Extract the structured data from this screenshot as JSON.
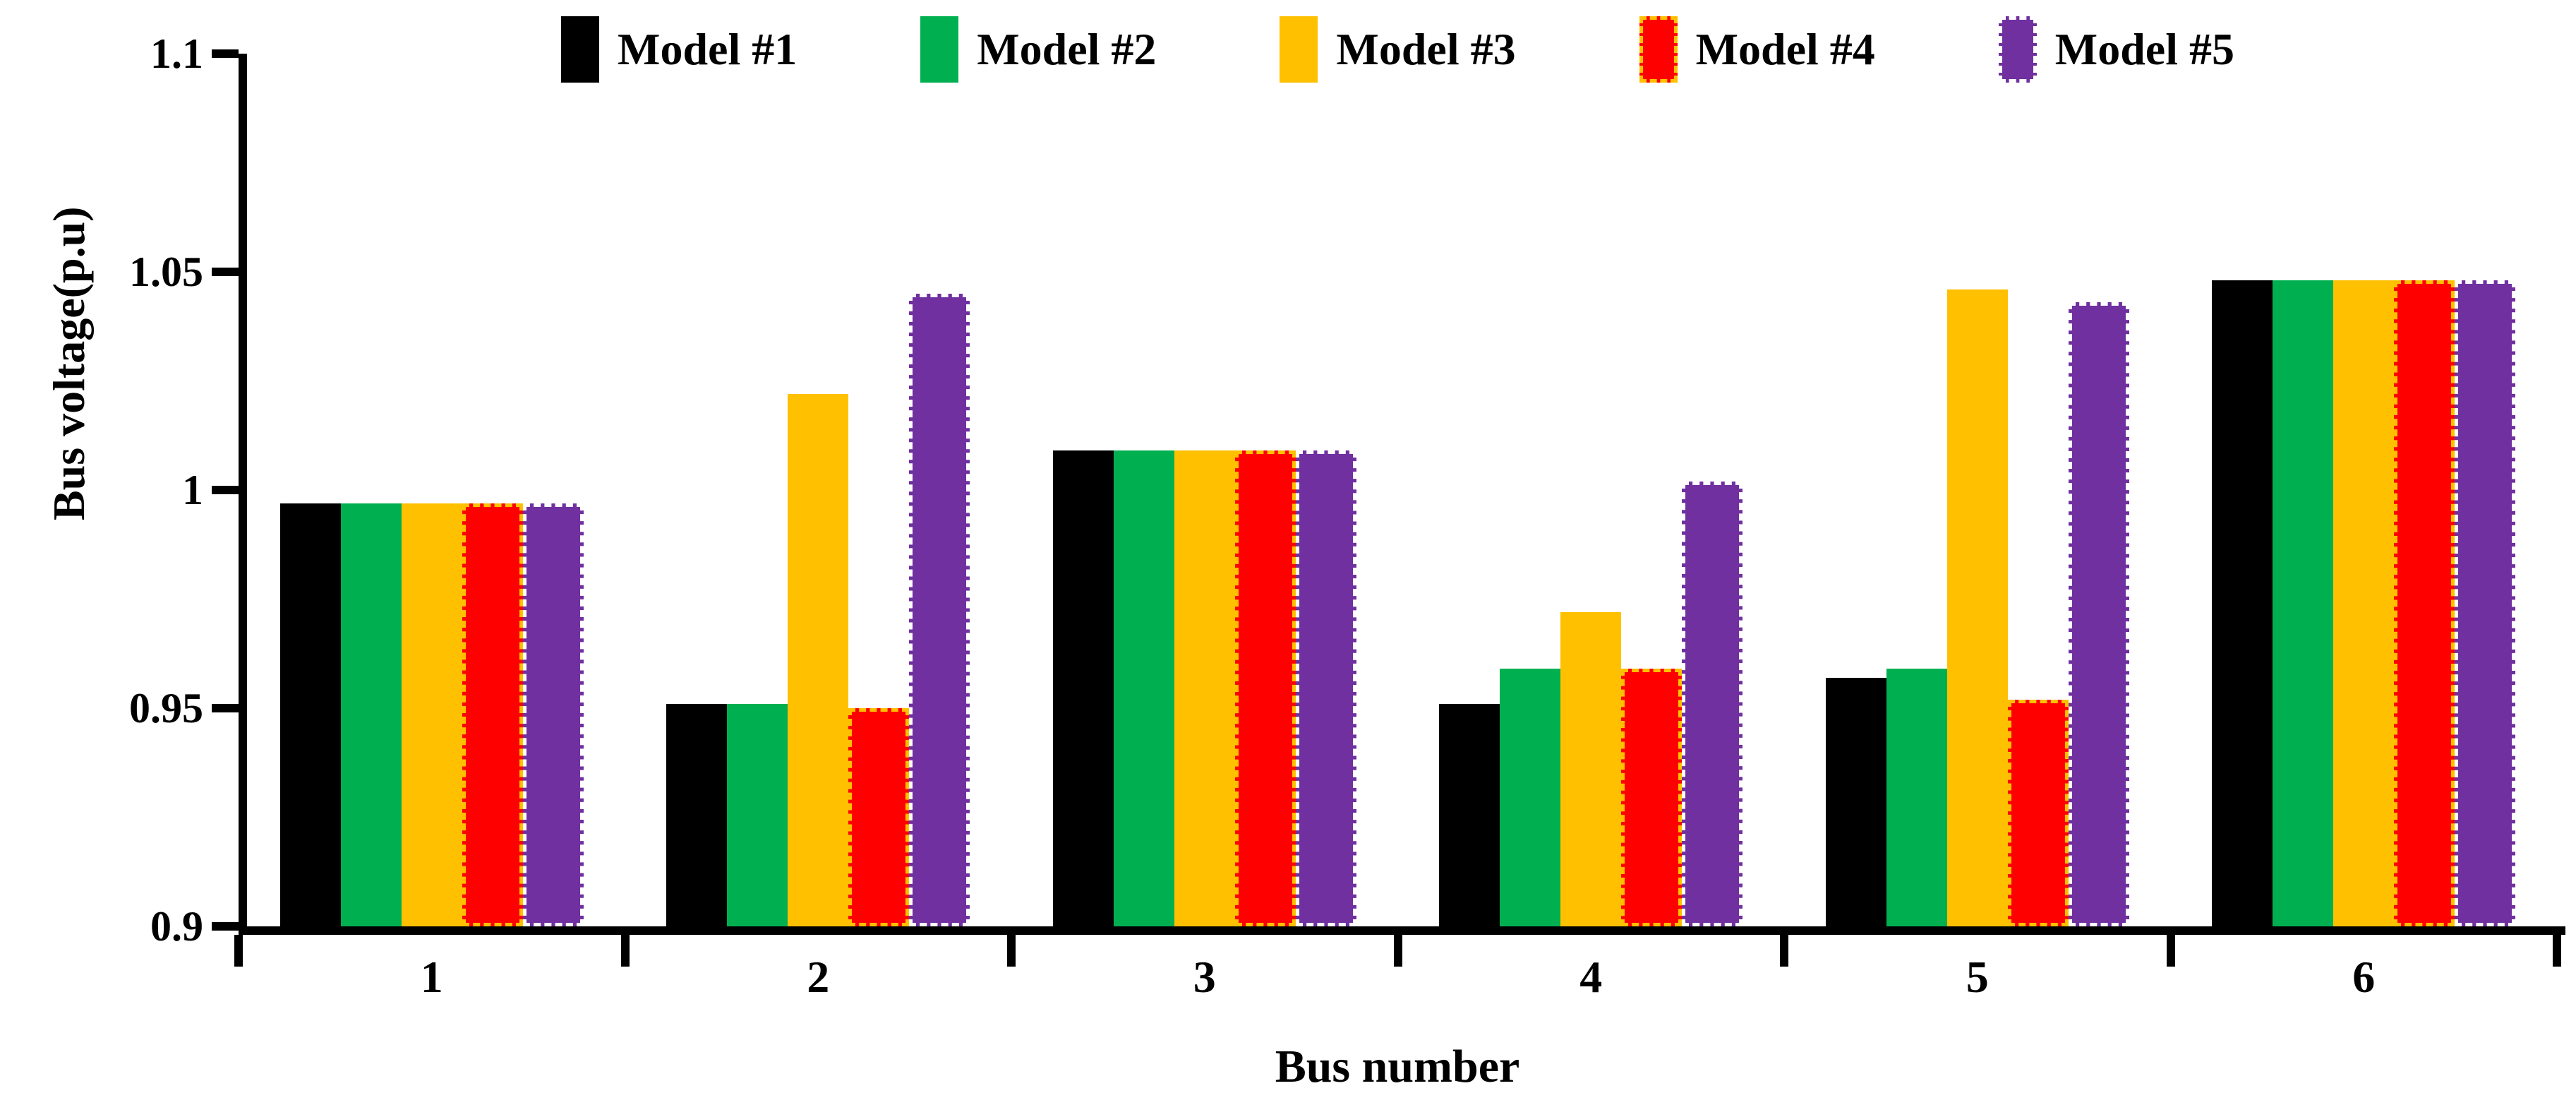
{
  "legend": {
    "items": [
      {
        "label": "Model #1",
        "color": "#000000",
        "dash": false,
        "dash_color": null
      },
      {
        "label": "Model #2",
        "color": "#00B050",
        "dash": false,
        "dash_color": null
      },
      {
        "label": "Model #3",
        "color": "#FFC000",
        "dash": false,
        "dash_color": null
      },
      {
        "label": "Model #4",
        "color": "#FF0000",
        "dash": true,
        "dash_color": "#FFC000"
      },
      {
        "label": "Model #5",
        "color": "#7030A0",
        "dash": true,
        "dash_color": "#FFFFFF"
      }
    ]
  },
  "chart_data": {
    "type": "bar",
    "title": "",
    "xlabel": "Bus number",
    "ylabel": "Bus voltage(p.u)",
    "ylim": [
      0.9,
      1.1
    ],
    "grid": false,
    "legend_position": "top",
    "categories": [
      "1",
      "2",
      "3",
      "4",
      "5",
      "6"
    ],
    "yticks": [
      {
        "value": 1.1,
        "label": "1.1"
      },
      {
        "value": 1.05,
        "label": "1.05"
      },
      {
        "value": 1.0,
        "label": "1"
      },
      {
        "value": 0.95,
        "label": "0.95"
      },
      {
        "value": 0.9,
        "label": "0.9"
      }
    ],
    "series": [
      {
        "name": "Model #1",
        "color": "#000000",
        "dash": false,
        "dash_color": null,
        "values": [
          0.997,
          0.951,
          1.009,
          0.951,
          0.957,
          1.048
        ]
      },
      {
        "name": "Model #2",
        "color": "#00B050",
        "dash": false,
        "dash_color": null,
        "values": [
          0.997,
          0.951,
          1.009,
          0.959,
          0.959,
          1.048
        ]
      },
      {
        "name": "Model #3",
        "color": "#FFC000",
        "dash": false,
        "dash_color": null,
        "values": [
          0.997,
          1.022,
          1.009,
          0.972,
          1.046,
          1.048
        ]
      },
      {
        "name": "Model #4",
        "color": "#FF0000",
        "dash": true,
        "dash_color": "#FFC000",
        "values": [
          0.997,
          0.95,
          1.009,
          0.959,
          0.952,
          1.048
        ]
      },
      {
        "name": "Model #5",
        "color": "#7030A0",
        "dash": true,
        "dash_color": "#FFFFFF",
        "values": [
          0.997,
          1.045,
          1.009,
          1.002,
          1.043,
          1.048
        ]
      }
    ]
  }
}
